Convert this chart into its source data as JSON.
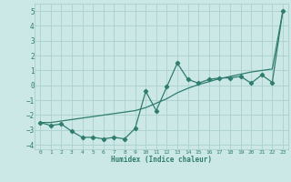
{
  "xlabel": "Humidex (Indice chaleur)",
  "x": [
    0,
    1,
    2,
    3,
    4,
    5,
    6,
    7,
    8,
    9,
    10,
    11,
    12,
    13,
    14,
    15,
    16,
    17,
    18,
    19,
    20,
    21,
    22,
    23
  ],
  "line1": [
    -2.5,
    -2.7,
    -2.6,
    -3.1,
    -3.5,
    -3.5,
    -3.6,
    -3.5,
    -3.6,
    -2.9,
    -0.4,
    -1.7,
    -0.1,
    1.5,
    0.4,
    0.15,
    0.4,
    0.5,
    0.5,
    0.6,
    0.15,
    0.7,
    0.2,
    5.0
  ],
  "line2": [
    -2.5,
    -2.5,
    -2.4,
    -2.3,
    -2.2,
    -2.1,
    -2.0,
    -1.9,
    -1.8,
    -1.7,
    -1.5,
    -1.2,
    -0.9,
    -0.5,
    -0.2,
    0.05,
    0.25,
    0.45,
    0.6,
    0.75,
    0.9,
    1.0,
    1.1,
    5.0
  ],
  "line_color": "#2e7d6e",
  "bg_color": "#cce8e6",
  "grid_color": "#aacfcc",
  "ylim": [
    -4.3,
    5.5
  ],
  "xlim": [
    -0.5,
    23.5
  ],
  "yticks": [
    -4,
    -3,
    -2,
    -1,
    0,
    1,
    2,
    3,
    4,
    5
  ],
  "xticks": [
    0,
    1,
    2,
    3,
    4,
    5,
    6,
    7,
    8,
    9,
    10,
    11,
    12,
    13,
    14,
    15,
    16,
    17,
    18,
    19,
    20,
    21,
    22,
    23
  ]
}
